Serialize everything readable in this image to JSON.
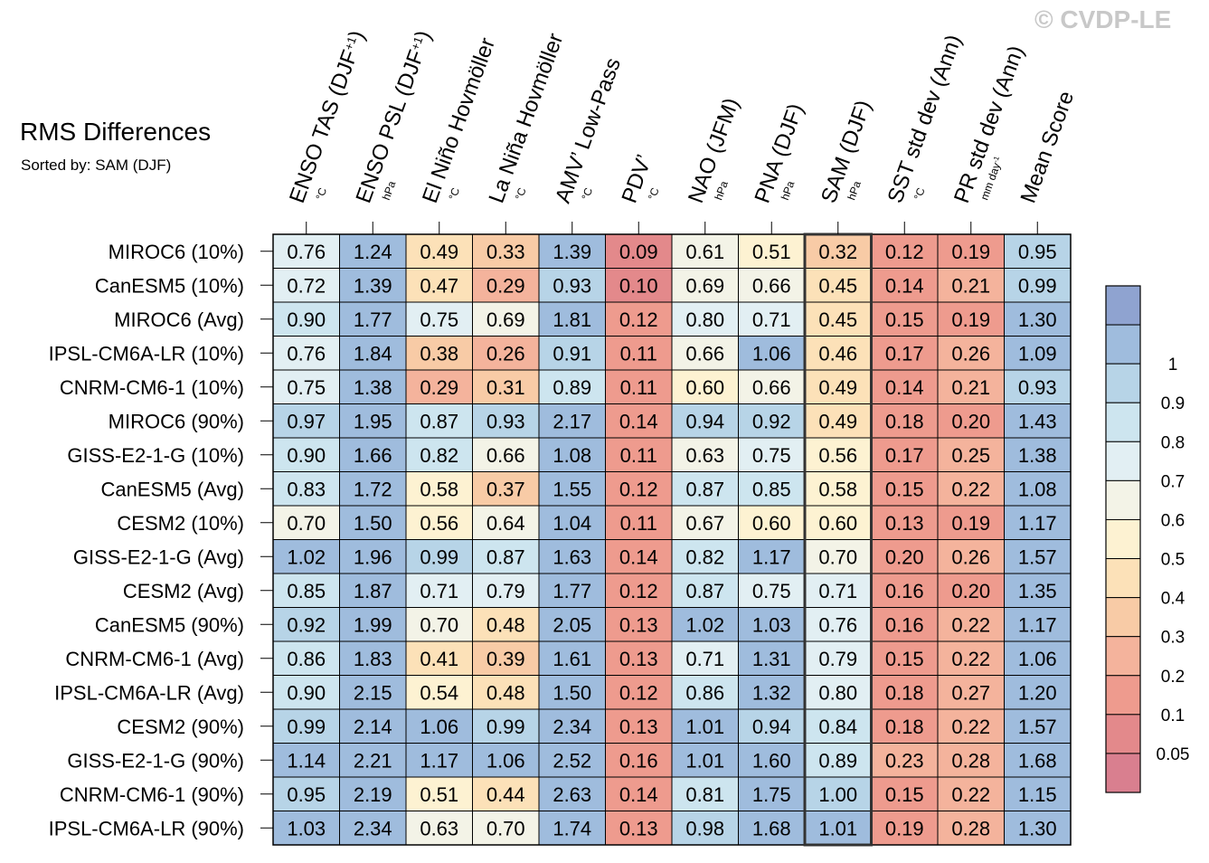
{
  "watermark": "© CVDP-LE",
  "chart_data": {
    "type": "heatmap",
    "title": "RMS Differences",
    "subtitle": "Sorted by: SAM (DJF)",
    "columns": [
      {
        "label": "ENSO TAS (DJF",
        "sup": "+1",
        "close": ")",
        "unit": "°C"
      },
      {
        "label": "ENSO PSL (DJF",
        "sup": "+1",
        "close": ")",
        "unit": "hPa"
      },
      {
        "label": "El Niño Hovmöller",
        "unit": "°C"
      },
      {
        "label": "La Niña Hovmöller",
        "unit": "°C"
      },
      {
        "label": "AMV’ Low-Pass",
        "unit": "°C"
      },
      {
        "label": "PDV’",
        "unit": "°C"
      },
      {
        "label": "NAO (JFM)",
        "unit": "hPa"
      },
      {
        "label": "PNA (DJF)",
        "unit": "hPa"
      },
      {
        "label": "SAM (DJF)",
        "unit": "hPa"
      },
      {
        "label": "SST std dev (Ann)",
        "unit": "°C"
      },
      {
        "label": "PR std dev (Ann)",
        "unit": "mm day",
        "unit_sup": "-1"
      },
      {
        "label": "Mean Score",
        "unit": ""
      }
    ],
    "highlight_column": 8,
    "rows": [
      {
        "name": "MIROC6 (10%)",
        "values": [
          0.76,
          1.24,
          0.49,
          0.33,
          1.39,
          0.09,
          0.61,
          0.51,
          0.32,
          0.12,
          0.19,
          0.95
        ]
      },
      {
        "name": "CanESM5 (10%)",
        "values": [
          0.72,
          1.39,
          0.47,
          0.29,
          0.93,
          0.1,
          0.69,
          0.66,
          0.45,
          0.14,
          0.21,
          0.99
        ]
      },
      {
        "name": "MIROC6 (Avg)",
        "values": [
          0.9,
          1.77,
          0.75,
          0.69,
          1.81,
          0.12,
          0.8,
          0.71,
          0.45,
          0.15,
          0.19,
          1.3
        ]
      },
      {
        "name": "IPSL-CM6A-LR (10%)",
        "values": [
          0.76,
          1.84,
          0.38,
          0.26,
          0.91,
          0.11,
          0.66,
          1.06,
          0.46,
          0.17,
          0.26,
          1.09
        ]
      },
      {
        "name": "CNRM-CM6-1 (10%)",
        "values": [
          0.75,
          1.38,
          0.29,
          0.31,
          0.89,
          0.11,
          0.6,
          0.66,
          0.49,
          0.14,
          0.21,
          0.93
        ]
      },
      {
        "name": "MIROC6 (90%)",
        "values": [
          0.97,
          1.95,
          0.87,
          0.93,
          2.17,
          0.14,
          0.94,
          0.92,
          0.49,
          0.18,
          0.2,
          1.43
        ]
      },
      {
        "name": "GISS-E2-1-G (10%)",
        "values": [
          0.9,
          1.66,
          0.82,
          0.66,
          1.08,
          0.11,
          0.63,
          0.75,
          0.56,
          0.17,
          0.25,
          1.38
        ]
      },
      {
        "name": "CanESM5 (Avg)",
        "values": [
          0.83,
          1.72,
          0.58,
          0.37,
          1.55,
          0.12,
          0.87,
          0.85,
          0.58,
          0.15,
          0.22,
          1.08
        ]
      },
      {
        "name": "CESM2 (10%)",
        "values": [
          0.7,
          1.5,
          0.56,
          0.64,
          1.04,
          0.11,
          0.67,
          0.6,
          0.6,
          0.13,
          0.19,
          1.17
        ]
      },
      {
        "name": "GISS-E2-1-G (Avg)",
        "values": [
          1.02,
          1.96,
          0.99,
          0.87,
          1.63,
          0.14,
          0.82,
          1.17,
          0.7,
          0.2,
          0.26,
          1.57
        ]
      },
      {
        "name": "CESM2 (Avg)",
        "values": [
          0.85,
          1.87,
          0.71,
          0.79,
          1.77,
          0.12,
          0.87,
          0.75,
          0.71,
          0.16,
          0.2,
          1.35
        ]
      },
      {
        "name": "CanESM5 (90%)",
        "values": [
          0.92,
          1.99,
          0.7,
          0.48,
          2.05,
          0.13,
          1.02,
          1.03,
          0.76,
          0.16,
          0.22,
          1.17
        ]
      },
      {
        "name": "CNRM-CM6-1 (Avg)",
        "values": [
          0.86,
          1.83,
          0.41,
          0.39,
          1.61,
          0.13,
          0.71,
          1.31,
          0.79,
          0.15,
          0.22,
          1.06
        ]
      },
      {
        "name": "IPSL-CM6A-LR (Avg)",
        "values": [
          0.9,
          2.15,
          0.54,
          0.48,
          1.5,
          0.12,
          0.86,
          1.32,
          0.8,
          0.18,
          0.27,
          1.2
        ]
      },
      {
        "name": "CESM2 (90%)",
        "values": [
          0.99,
          2.14,
          1.06,
          0.99,
          2.34,
          0.13,
          1.01,
          0.94,
          0.84,
          0.18,
          0.22,
          1.57
        ]
      },
      {
        "name": "GISS-E2-1-G (90%)",
        "values": [
          1.14,
          2.21,
          1.17,
          1.06,
          2.52,
          0.16,
          1.01,
          1.6,
          0.89,
          0.23,
          0.28,
          1.68
        ]
      },
      {
        "name": "CNRM-CM6-1 (90%)",
        "values": [
          0.95,
          2.19,
          0.51,
          0.44,
          2.63,
          0.14,
          0.81,
          1.75,
          1.0,
          0.15,
          0.22,
          1.15
        ]
      },
      {
        "name": "IPSL-CM6A-LR (90%)",
        "values": [
          1.03,
          2.34,
          0.63,
          0.7,
          1.74,
          0.13,
          0.98,
          1.68,
          1.01,
          0.19,
          0.28,
          1.3
        ]
      }
    ],
    "colorbar": {
      "levels": [
        0.05,
        0.1,
        0.2,
        0.3,
        0.4,
        0.5,
        0.6,
        0.7,
        0.8,
        0.9,
        1
      ],
      "labels": [
        "0.05",
        "0.1",
        "0.2",
        "0.3",
        "0.4",
        "0.5",
        "0.6",
        "0.7",
        "0.8",
        "0.9",
        "1"
      ],
      "colors": [
        "#d97f8f",
        "#e3898b",
        "#ee9b8e",
        "#f4b39c",
        "#f8cba6",
        "#fce1b8",
        "#fdf2d2",
        "#f3f3e7",
        "#e2eff3",
        "#cde5ef",
        "#b7d4e7",
        "#9fbcdd",
        "#8fa3d0"
      ]
    }
  }
}
